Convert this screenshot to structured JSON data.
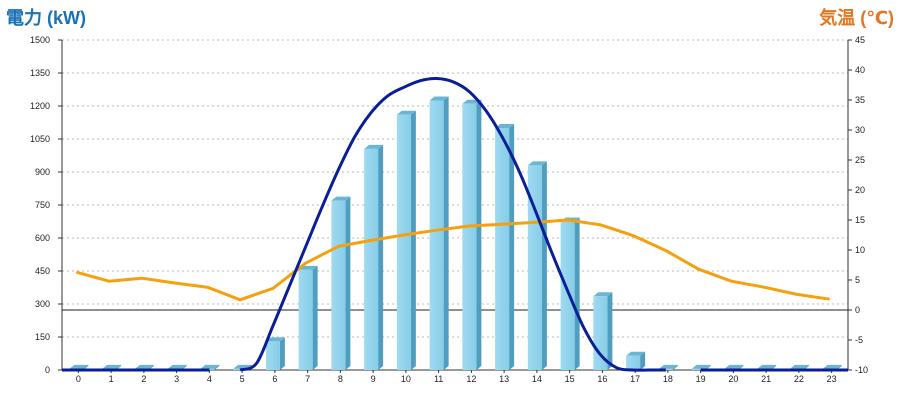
{
  "chart_data": {
    "type": "bar",
    "title": "",
    "left_axis": {
      "label": "電力 (kW)",
      "min": 0,
      "max": 1500,
      "ticks": [
        0,
        150,
        300,
        450,
        600,
        750,
        900,
        1050,
        1200,
        1350,
        1500
      ],
      "color": "#1a72b5"
    },
    "right_axis": {
      "label": "気温 (℃)",
      "min": -10,
      "max": 45,
      "ticks": [
        -10,
        -5,
        0,
        5,
        10,
        15,
        20,
        25,
        30,
        35,
        40,
        45
      ],
      "color": "#e5761f"
    },
    "categories": [
      "0",
      "1",
      "2",
      "3",
      "4",
      "5",
      "6",
      "7",
      "8",
      "9",
      "10",
      "11",
      "12",
      "13",
      "14",
      "15",
      "16",
      "17",
      "18",
      "19",
      "20",
      "21",
      "22",
      "23"
    ],
    "grid": true,
    "series": [
      {
        "type": "bar",
        "axis": "left",
        "values": [
          5,
          5,
          5,
          5,
          5,
          5,
          130,
          455,
          770,
          1005,
          1160,
          1225,
          1210,
          1100,
          930,
          675,
          335,
          65,
          5,
          5,
          5,
          5,
          5,
          5
        ],
        "color": "#87cde8"
      },
      {
        "type": "line",
        "axis": "left",
        "smooth": true,
        "x": [
          5.0,
          5.5,
          6.0,
          6.5,
          7.0,
          7.5,
          8.0,
          8.5,
          9.0,
          9.5,
          10.0,
          10.5,
          11.0,
          11.5,
          12.0,
          12.5,
          13.0,
          13.5,
          14.0,
          14.5,
          15.0,
          15.5,
          16.0,
          16.5,
          17.0,
          17.5,
          18.0
        ],
        "values": [
          0,
          30,
          200,
          380,
          560,
          740,
          910,
          1060,
          1170,
          1245,
          1285,
          1315,
          1325,
          1310,
          1265,
          1180,
          1060,
          910,
          730,
          540,
          360,
          190,
          70,
          10,
          0,
          0,
          0
        ],
        "color": "#0a1e96"
      },
      {
        "type": "line",
        "axis": "right",
        "values": [
          6.3,
          4.8,
          5.3,
          4.5,
          3.8,
          1.7,
          3.6,
          7.8,
          10.6,
          11.6,
          12.5,
          13.3,
          14.0,
          14.3,
          14.6,
          15.0,
          14.2,
          12.4,
          9.9,
          6.8,
          4.8,
          3.8,
          2.6,
          1.8
        ],
        "color": "#f5a00f"
      }
    ]
  }
}
